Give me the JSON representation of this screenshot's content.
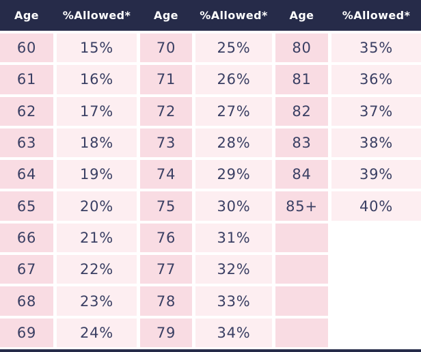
{
  "colors": {
    "header_bg": "#262b49",
    "header_text": "#ffffff",
    "age_cell_bg": "#f9dce3",
    "allowed_cell_bg": "#fdeef1",
    "text_color": "#3a3f63",
    "gap_color": "#ffffff"
  },
  "chart_data": {
    "type": "table",
    "title": "",
    "headers": [
      "Age",
      "%Allowed*",
      "Age",
      "%Allowed*",
      "Age",
      "%Allowed*"
    ],
    "rows": [
      [
        "60",
        "15%",
        "70",
        "25%",
        "80",
        "35%"
      ],
      [
        "61",
        "16%",
        "71",
        "26%",
        "81",
        "36%"
      ],
      [
        "62",
        "17%",
        "72",
        "27%",
        "82",
        "37%"
      ],
      [
        "63",
        "18%",
        "73",
        "28%",
        "83",
        "38%"
      ],
      [
        "64",
        "19%",
        "74",
        "29%",
        "84",
        "39%"
      ],
      [
        "65",
        "20%",
        "75",
        "30%",
        "85+",
        "40%"
      ],
      [
        "66",
        "21%",
        "76",
        "31%",
        "",
        ""
      ],
      [
        "67",
        "22%",
        "77",
        "32%",
        "",
        ""
      ],
      [
        "68",
        "23%",
        "78",
        "33%",
        "",
        ""
      ],
      [
        "69",
        "24%",
        "79",
        "34%",
        "",
        ""
      ]
    ]
  },
  "table": {
    "headers": [
      "Age",
      "%Allowed*",
      "Age",
      "%Allowed*",
      "Age",
      "%Allowed*"
    ],
    "rows": [
      [
        "60",
        "15%",
        "70",
        "25%",
        "80",
        "35%"
      ],
      [
        "61",
        "16%",
        "71",
        "26%",
        "81",
        "36%"
      ],
      [
        "62",
        "17%",
        "72",
        "27%",
        "82",
        "37%"
      ],
      [
        "63",
        "18%",
        "73",
        "28%",
        "83",
        "38%"
      ],
      [
        "64",
        "19%",
        "74",
        "29%",
        "84",
        "39%"
      ],
      [
        "65",
        "20%",
        "75",
        "30%",
        "85+",
        "40%"
      ],
      [
        "66",
        "21%",
        "76",
        "31%",
        "",
        ""
      ],
      [
        "67",
        "22%",
        "77",
        "32%",
        "",
        ""
      ],
      [
        "68",
        "23%",
        "78",
        "33%",
        "",
        ""
      ],
      [
        "69",
        "24%",
        "79",
        "34%",
        "",
        ""
      ]
    ]
  }
}
